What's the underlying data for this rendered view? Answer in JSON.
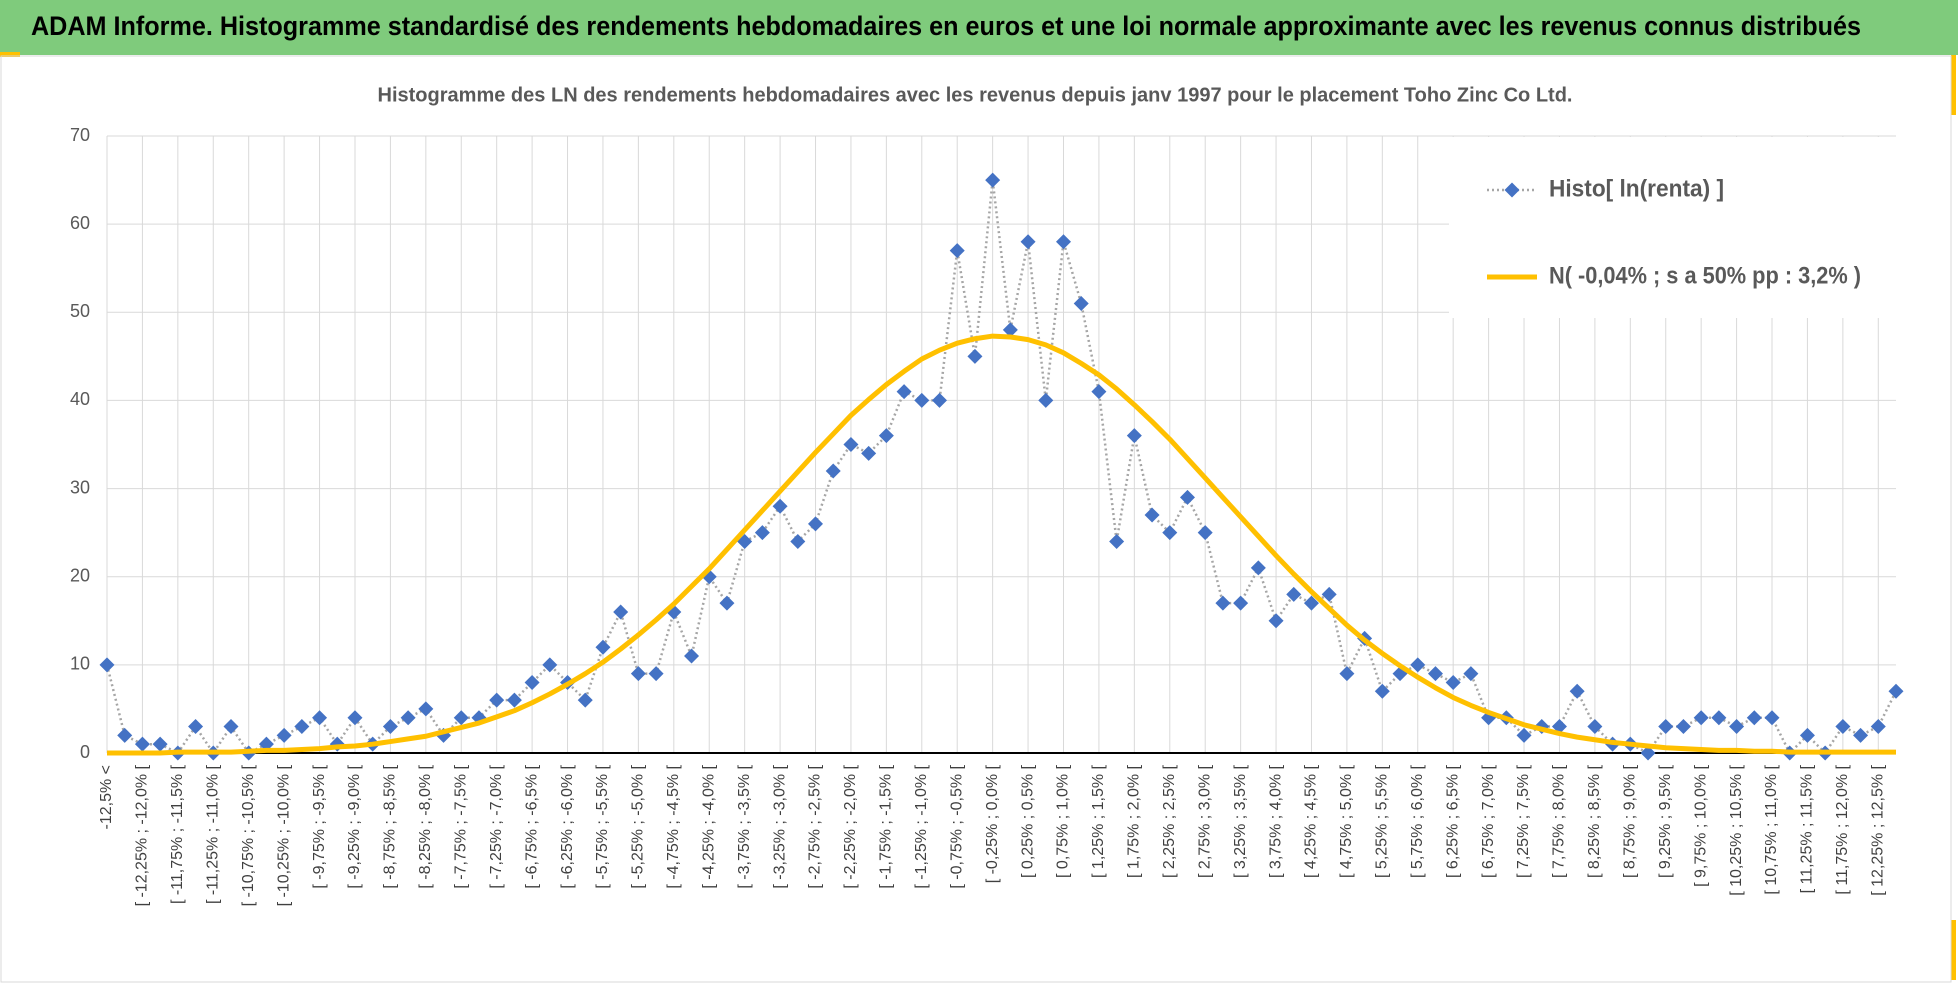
{
  "chart_data": {
    "type": "line",
    "title": "ADAM Informe. Histogramme standardisé des rendements hebdomadaires en euros et une loi normale approximante avec les revenus connus distribués",
    "subtitle": "Histogramme des LN des rendements hebdomadaires avec les revenus depuis janv 1997 pour le placement Toho Zinc Co Ltd.",
    "categories": [
      "-12,5% <",
      null,
      "[ -12,25% ; -12,0% [",
      null,
      "[ -11,75% ; -11,5% [",
      null,
      "[ -11,25% ; -11,0% [",
      null,
      "[ -10,75% ; -10,5% [",
      null,
      "[ -10,25% ; -10,0% [",
      null,
      "[ -9,75% ; -9,5% [",
      null,
      "[ -9,25% ; -9,0% [",
      null,
      "[ -8,75% ; -8,5% [",
      null,
      "[ -8,25% ; -8,0% [",
      null,
      "[ -7,75% ; -7,5% [",
      null,
      "[ -7,25% ; -7,0% [",
      null,
      "[ -6,75% ; -6,5% [",
      null,
      "[ -6,25% ; -6,0% [",
      null,
      "[ -5,75% ; -5,5% [",
      null,
      "[ -5,25% ; -5,0% [",
      null,
      "[ -4,75% ; -4,5% [",
      null,
      "[ -4,25% ; -4,0% [",
      null,
      "[ -3,75% ; -3,5% [",
      null,
      "[ -3,25% ; -3,0% [",
      null,
      "[ -2,75% ; -2,5% [",
      null,
      "[ -2,25% ; -2,0% [",
      null,
      "[ -1,75% ; -1,5% [",
      null,
      "[ -1,25% ; -1,0% [",
      null,
      "[ -0,75% ; -0,5% [",
      null,
      "[ -0,25% ; 0,0% [",
      null,
      "[ 0,25% ; 0,5% [",
      null,
      "[ 0,75% ; 1,0% [",
      null,
      "[ 1,25% ; 1,5% [",
      null,
      "[ 1,75% ; 2,0% [",
      null,
      "[ 2,25% ; 2,5% [",
      null,
      "[ 2,75% ; 3,0% [",
      null,
      "[ 3,25% ; 3,5% [",
      null,
      "[ 3,75% ; 4,0% [",
      null,
      "[ 4,25% ; 4,5% [",
      null,
      "[ 4,75% ; 5,0% [",
      null,
      "[ 5,25% ; 5,5% [",
      null,
      "[ 5,75% ; 6,0% [",
      null,
      "[ 6,25% ; 6,5% [",
      null,
      "[ 6,75% ; 7,0% [",
      null,
      "[ 7,25% ; 7,5% [",
      null,
      "[ 7,75% ; 8,0% [",
      null,
      "[ 8,25% ; 8,5% [",
      null,
      "[ 8,75% ; 9,0% [",
      null,
      "[ 9,25% ; 9,5% [",
      null,
      "[ 9,75% ; 10,0% [",
      null,
      "[ 10,25% ; 10,5% [",
      null,
      "[ 10,75% ; 11,0% [",
      null,
      "[ 11,25% ; 11,5% [",
      null,
      "[ 11,75% ; 12,0% [",
      null,
      "[ 12,25% ; 12,5% [",
      null
    ],
    "series": [
      {
        "name": "Histo[ ln(renta) ]",
        "color": "#4472c4",
        "line_color": "#a6a6a6",
        "line_style": "dotted",
        "marker": "diamond",
        "values": [
          10,
          2,
          1,
          1,
          0,
          3,
          0,
          3,
          0,
          1,
          2,
          3,
          4,
          1,
          4,
          1,
          3,
          4,
          5,
          2,
          4,
          4,
          6,
          6,
          8,
          10,
          8,
          6,
          12,
          16,
          9,
          9,
          16,
          11,
          20,
          17,
          24,
          25,
          28,
          24,
          26,
          32,
          35,
          34,
          36,
          41,
          40,
          40,
          57,
          45,
          65,
          48,
          58,
          40,
          58,
          51,
          41,
          24,
          36,
          27,
          25,
          29,
          25,
          17,
          17,
          21,
          15,
          18,
          17,
          18,
          9,
          13,
          7,
          9,
          10,
          9,
          8,
          9,
          4,
          4,
          2,
          3,
          3,
          7,
          3,
          1,
          1,
          0,
          3,
          3,
          4,
          4,
          3,
          4,
          4,
          0,
          2,
          0,
          3,
          2,
          3,
          7
        ]
      },
      {
        "name": "N( -0,04% ; s a 50% pp : 3,2% )",
        "color": "#ffc000",
        "line_style": "solid",
        "marker": "none",
        "values": [
          0.0,
          0.0,
          0.0,
          0.0,
          0.1,
          0.1,
          0.1,
          0.1,
          0.2,
          0.3,
          0.3,
          0.4,
          0.5,
          0.7,
          0.8,
          1.0,
          1.3,
          1.6,
          1.9,
          2.4,
          2.9,
          3.4,
          4.1,
          4.8,
          5.7,
          6.7,
          7.8,
          9.0,
          10.3,
          11.8,
          13.4,
          15.1,
          16.9,
          18.9,
          20.9,
          23.1,
          25.3,
          27.5,
          29.7,
          31.9,
          34.1,
          36.2,
          38.3,
          40.1,
          41.8,
          43.3,
          44.7,
          45.7,
          46.5,
          47.0,
          47.3,
          47.2,
          46.9,
          46.3,
          45.4,
          44.2,
          42.9,
          41.3,
          39.5,
          37.6,
          35.6,
          33.4,
          31.2,
          29.0,
          26.8,
          24.6,
          22.4,
          20.3,
          18.3,
          16.4,
          14.5,
          12.8,
          11.3,
          9.9,
          8.6,
          7.4,
          6.3,
          5.4,
          4.6,
          3.9,
          3.2,
          2.7,
          2.2,
          1.8,
          1.5,
          1.2,
          1.0,
          0.8,
          0.6,
          0.5,
          0.4,
          0.3,
          0.3,
          0.2,
          0.2,
          0.1,
          0.1,
          0.1,
          0.1,
          0.1,
          0.1,
          0.1
        ]
      }
    ],
    "ylim": [
      0,
      70
    ],
    "yticks": [
      0,
      10,
      20,
      30,
      40,
      50,
      60,
      70
    ],
    "grid": true,
    "legend": "upper right"
  }
}
